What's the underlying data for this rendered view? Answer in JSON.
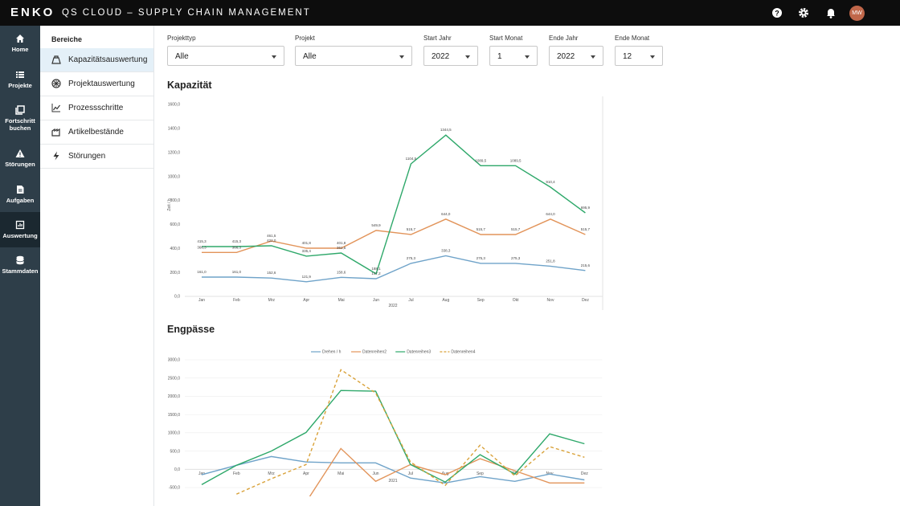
{
  "header": {
    "logo": "ENKO",
    "title": "QS CLOUD – SUPPLY CHAIN MANAGEMENT",
    "avatar": "MW"
  },
  "nav": [
    "Home",
    "Projekte",
    "Fortschritt buchen",
    "Störungen",
    "Aufgaben",
    "Auswertung",
    "Stammdaten"
  ],
  "sidebar": {
    "title": "Bereiche",
    "items": [
      "Kapazitätsauswertung",
      "Projektauswertung",
      "Prozessschritte",
      "Artikelbestände",
      "Störungen"
    ]
  },
  "filters": [
    {
      "label": "Projekttyp",
      "value": "Alle"
    },
    {
      "label": "Projekt",
      "value": "Alle"
    },
    {
      "label": "Start Jahr",
      "value": "2022"
    },
    {
      "label": "Start Monat",
      "value": "1"
    },
    {
      "label": "Ende Jahr",
      "value": "2022"
    },
    {
      "label": "Ende Monat",
      "value": "12"
    }
  ],
  "chart_data": [
    {
      "type": "line",
      "title": "Kapazität",
      "x_label": "2022",
      "y_label": "Zeit / h",
      "categories": [
        "Jan",
        "Feb",
        "Mrz",
        "Apr",
        "Mai",
        "Jun",
        "Jul",
        "Aug",
        "Sep",
        "Okt",
        "Nov",
        "Dez"
      ],
      "ylim": [
        0,
        1600
      ],
      "yticks": [
        {
          "value": 0,
          "label": "0,0"
        },
        {
          "value": 200,
          "label": "200,0"
        },
        {
          "value": 400,
          "label": "400,0"
        },
        {
          "value": 600,
          "label": "600,0"
        },
        {
          "value": 800,
          "label": "800,0"
        },
        {
          "value": 1000,
          "label": "1000,0"
        },
        {
          "value": 1200,
          "label": "1200,0"
        },
        {
          "value": 1400,
          "label": "1400,0"
        },
        {
          "value": 1600,
          "label": "1600,0"
        }
      ],
      "grid": false,
      "series": [
        {
          "color": "#6fa3c9",
          "values": [
            161,
            161,
            152.6,
            121.9,
            158.6,
            147.2,
            275.3,
            338.3,
            275.3,
            275.3,
            251.8,
            215.6
          ],
          "value_labels": [
            "161,0",
            "161,0",
            "152,6",
            "121,9",
            "158,6",
            "147,2",
            "275,3",
            "338,3",
            "275,3",
            "275,3",
            "251,8",
            "215,6"
          ]
        },
        {
          "color": "#e2945a",
          "values": [
            366.3,
            366.3,
            461.5,
            401.8,
            401.8,
            549.9,
            515.7,
            644.0,
            515.7,
            515.7,
            644.0,
            515.7
          ],
          "value_labels": [
            "366,3",
            "366,3",
            "461,5",
            "401,8",
            "401,8",
            "549,9",
            "515,7",
            "644,0",
            "515,7",
            "515,7",
            "644,0",
            "515,7"
          ]
        },
        {
          "color": "#2ea86a",
          "values": [
            415.3,
            415.3,
            422.0,
            335.4,
            361.5,
            188.1,
            1104.5,
            1344.5,
            1089.5,
            1089.5,
            910.4,
            695.9
          ],
          "value_labels": [
            "415,3",
            "415,3",
            "422,0",
            "335,4",
            "361,5",
            "188,1",
            "1104,5",
            "1344,5",
            "1089,5",
            "1089,5",
            "910,4",
            "695,9"
          ]
        }
      ]
    },
    {
      "type": "line",
      "title": "Engpässe",
      "x_label": "2021",
      "categories": [
        "Jan",
        "Feb",
        "Mrz",
        "Apr",
        "Mai",
        "Jun",
        "Jul",
        "Aug",
        "Sep",
        "Okt",
        "Nov",
        "Dez"
      ],
      "ylim": [
        -500,
        3000
      ],
      "yticks": [
        {
          "value": -500,
          "label": "-500,0"
        },
        {
          "value": 0,
          "label": "0,0"
        },
        {
          "value": 500,
          "label": "500,0"
        },
        {
          "value": 1000,
          "label": "1000,0"
        },
        {
          "value": 1500,
          "label": "1500,0"
        },
        {
          "value": 2000,
          "label": "2000,0"
        },
        {
          "value": 2500,
          "label": "2500,0"
        },
        {
          "value": 3000,
          "label": "3000,0"
        }
      ],
      "grid": true,
      "series": [
        {
          "name": "Drehen / h",
          "color": "#6fa3c9",
          "dashed": false,
          "values": [
            -150,
            110,
            350,
            200,
            175,
            175,
            -240,
            -375,
            -200,
            -330,
            -130,
            -290
          ]
        },
        {
          "name": "Datenreihen2",
          "color": "#e2945a",
          "dashed": false,
          "values": [
            null,
            null,
            null,
            -900,
            570,
            -330,
            130,
            -150,
            290,
            -40,
            -375,
            -375
          ]
        },
        {
          "name": "Datenreihen3",
          "color": "#2ea86a",
          "dashed": false,
          "values": [
            -420,
            110,
            500,
            1010,
            2160,
            2140,
            130,
            -350,
            400,
            -130,
            970,
            700
          ]
        },
        {
          "name": "Datenreihen4",
          "color": "#d9a23a",
          "dashed": true,
          "values": [
            null,
            -680,
            -260,
            130,
            2730,
            2090,
            200,
            -440,
            660,
            -180,
            620,
            330
          ]
        }
      ]
    }
  ]
}
